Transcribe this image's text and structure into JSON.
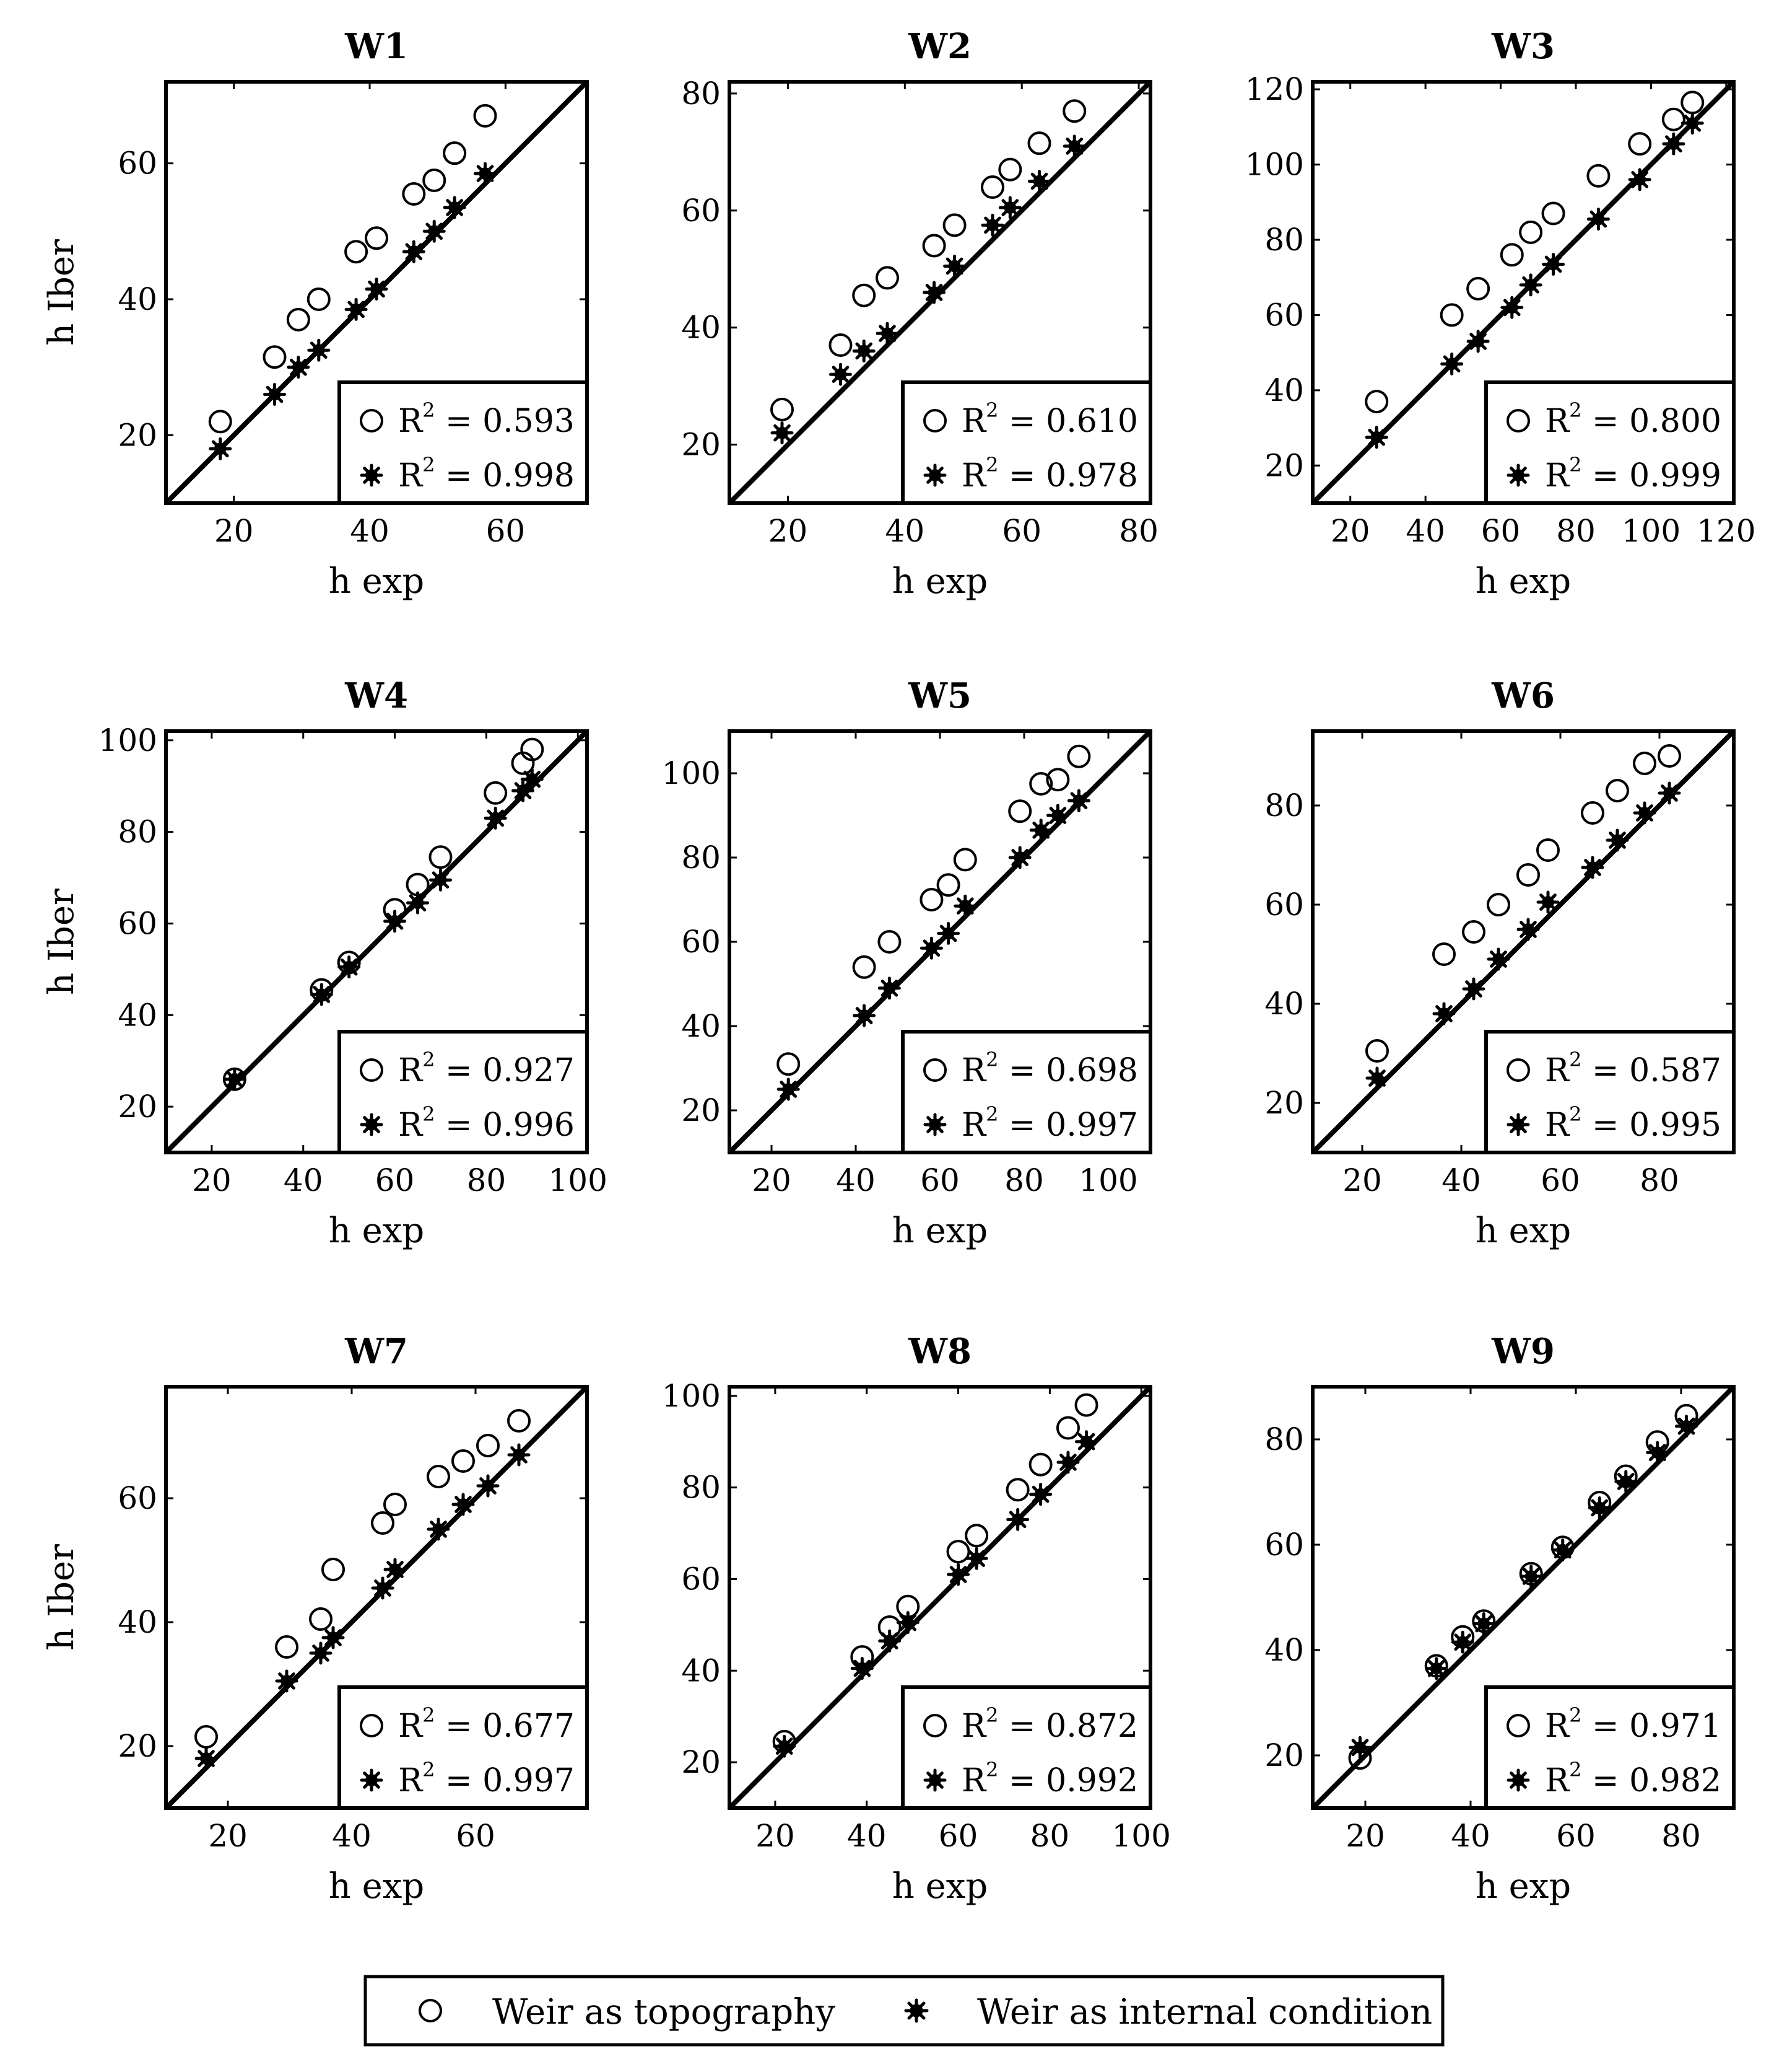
{
  "chart_data": [
    {
      "type": "scatter",
      "title": "W1",
      "xlabel": "h exp",
      "ylabel": "h Iber",
      "xlim": [
        10,
        72
      ],
      "ylim": [
        10,
        72
      ],
      "xticks": [
        20,
        40,
        60
      ],
      "yticks": [
        20,
        40,
        60
      ],
      "series": [
        {
          "name": "Weir as topography",
          "marker": "open-circle",
          "r2": "R² = 0.593",
          "points": [
            [
              18,
              22
            ],
            [
              26,
              31.5
            ],
            [
              29.5,
              37
            ],
            [
              32.5,
              40
            ],
            [
              38,
              47
            ],
            [
              41,
              49
            ],
            [
              46.5,
              55.5
            ],
            [
              49.5,
              57.5
            ],
            [
              52.5,
              61.5
            ],
            [
              57,
              67
            ]
          ]
        },
        {
          "name": "Weir as internal condition",
          "marker": "filled-star",
          "r2": "R² = 0.998",
          "points": [
            [
              18,
              18
            ],
            [
              26,
              26
            ],
            [
              29.5,
              30
            ],
            [
              32.5,
              32.5
            ],
            [
              38,
              38.5
            ],
            [
              41,
              41.5
            ],
            [
              46.5,
              47
            ],
            [
              49.5,
              50
            ],
            [
              52.5,
              53.5
            ],
            [
              57,
              58.5
            ]
          ]
        }
      ]
    },
    {
      "type": "scatter",
      "title": "W2",
      "xlabel": "h exp",
      "ylabel": "",
      "xlim": [
        10,
        82
      ],
      "ylim": [
        10,
        82
      ],
      "xticks": [
        20,
        40,
        60,
        80
      ],
      "yticks": [
        20,
        40,
        60,
        80
      ],
      "series": [
        {
          "name": "Weir as topography",
          "marker": "open-circle",
          "r2": "R² = 0.610",
          "points": [
            [
              19,
              26
            ],
            [
              29,
              37
            ],
            [
              33,
              45.5
            ],
            [
              37,
              48.5
            ],
            [
              45,
              54
            ],
            [
              48.5,
              57.5
            ],
            [
              55,
              64
            ],
            [
              58,
              67
            ],
            [
              63,
              71.5
            ],
            [
              69,
              77
            ]
          ]
        },
        {
          "name": "Weir as internal condition",
          "marker": "filled-star",
          "r2": "R² = 0.978",
          "points": [
            [
              19,
              22
            ],
            [
              29,
              32
            ],
            [
              33,
              36
            ],
            [
              37,
              39
            ],
            [
              45,
              46
            ],
            [
              48.5,
              50.5
            ],
            [
              55,
              57.5
            ],
            [
              58,
              60.5
            ],
            [
              63,
              65
            ],
            [
              69,
              71
            ]
          ]
        }
      ]
    },
    {
      "type": "scatter",
      "title": "W3",
      "xlabel": "h exp",
      "ylabel": "",
      "xlim": [
        10,
        122
      ],
      "ylim": [
        10,
        122
      ],
      "xticks": [
        20,
        40,
        60,
        80,
        100,
        120
      ],
      "yticks": [
        20,
        40,
        60,
        80,
        100,
        120
      ],
      "series": [
        {
          "name": "Weir as topography",
          "marker": "open-circle",
          "r2": "R² = 0.800",
          "points": [
            [
              27,
              37
            ],
            [
              47,
              60
            ],
            [
              54,
              67
            ],
            [
              63,
              76
            ],
            [
              68,
              82
            ],
            [
              74,
              87
            ],
            [
              86,
              97
            ],
            [
              97,
              105.5
            ],
            [
              106,
              112
            ],
            [
              111,
              116.5
            ]
          ]
        },
        {
          "name": "Weir as internal condition",
          "marker": "filled-star",
          "r2": "R² = 0.999",
          "points": [
            [
              27,
              27.5
            ],
            [
              47,
              47
            ],
            [
              54,
              53
            ],
            [
              63,
              62
            ],
            [
              68,
              68
            ],
            [
              74,
              73.5
            ],
            [
              86,
              85.5
            ],
            [
              97,
              96
            ],
            [
              106,
              105.5
            ],
            [
              111,
              111
            ]
          ]
        }
      ]
    },
    {
      "type": "scatter",
      "title": "W4",
      "xlabel": "h exp",
      "ylabel": "h Iber",
      "xlim": [
        10,
        102
      ],
      "ylim": [
        10,
        102
      ],
      "xticks": [
        20,
        40,
        60,
        80,
        100
      ],
      "yticks": [
        20,
        40,
        60,
        80,
        100
      ],
      "series": [
        {
          "name": "Weir as topography",
          "marker": "open-circle",
          "r2": "R² = 0.927",
          "points": [
            [
              25,
              26
            ],
            [
              44,
              45.5
            ],
            [
              50,
              51.5
            ],
            [
              60,
              63
            ],
            [
              65,
              68.5
            ],
            [
              70,
              74.5
            ],
            [
              82,
              88.5
            ],
            [
              88,
              95
            ],
            [
              90,
              98
            ]
          ]
        },
        {
          "name": "Weir as internal condition",
          "marker": "filled-star",
          "r2": "R² = 0.996",
          "points": [
            [
              25,
              26
            ],
            [
              44,
              44.5
            ],
            [
              50,
              50.5
            ],
            [
              60,
              60.5
            ],
            [
              65,
              64.5
            ],
            [
              70,
              69.5
            ],
            [
              82,
              83
            ],
            [
              88,
              89
            ],
            [
              90,
              91.5
            ]
          ]
        }
      ]
    },
    {
      "type": "scatter",
      "title": "W5",
      "xlabel": "h exp",
      "ylabel": "",
      "xlim": [
        10,
        110
      ],
      "ylim": [
        10,
        110
      ],
      "xticks": [
        20,
        40,
        60,
        80,
        100
      ],
      "yticks": [
        20,
        40,
        60,
        80,
        100
      ],
      "series": [
        {
          "name": "Weir as topography",
          "marker": "open-circle",
          "r2": "R² = 0.698",
          "points": [
            [
              24,
              31
            ],
            [
              42,
              54
            ],
            [
              48,
              60
            ],
            [
              58,
              70
            ],
            [
              62,
              73.5
            ],
            [
              66,
              79.5
            ],
            [
              79,
              91
            ],
            [
              84,
              97.5
            ],
            [
              88,
              98.5
            ],
            [
              93,
              104
            ]
          ]
        },
        {
          "name": "Weir as internal condition",
          "marker": "filled-star",
          "r2": "R² = 0.997",
          "points": [
            [
              24,
              25
            ],
            [
              42,
              42.5
            ],
            [
              48,
              49
            ],
            [
              58,
              58.5
            ],
            [
              62,
              62
            ],
            [
              66,
              68.5
            ],
            [
              79,
              80
            ],
            [
              84,
              86.5
            ],
            [
              88,
              90
            ],
            [
              93,
              93.5
            ]
          ]
        }
      ]
    },
    {
      "type": "scatter",
      "title": "W6",
      "xlabel": "h exp",
      "ylabel": "",
      "xlim": [
        10,
        95
      ],
      "ylim": [
        10,
        95
      ],
      "xticks": [
        20,
        40,
        60,
        80
      ],
      "yticks": [
        20,
        40,
        60,
        80
      ],
      "series": [
        {
          "name": "Weir as topography",
          "marker": "open-circle",
          "r2": "R² = 0.587",
          "points": [
            [
              23,
              30.5
            ],
            [
              36.5,
              50
            ],
            [
              42.5,
              54.5
            ],
            [
              47.5,
              60
            ],
            [
              53.5,
              66
            ],
            [
              57.5,
              71
            ],
            [
              66.5,
              78.5
            ],
            [
              71.5,
              83
            ],
            [
              77,
              88.5
            ],
            [
              82,
              90
            ]
          ]
        },
        {
          "name": "Weir as internal condition",
          "marker": "filled-star",
          "r2": "R² = 0.995",
          "points": [
            [
              23,
              25
            ],
            [
              36.5,
              38
            ],
            [
              42.5,
              43
            ],
            [
              47.5,
              49
            ],
            [
              53.5,
              55
            ],
            [
              57.5,
              60.5
            ],
            [
              66.5,
              67.5
            ],
            [
              71.5,
              73
            ],
            [
              77,
              78.5
            ],
            [
              82,
              82.5
            ]
          ]
        }
      ]
    },
    {
      "type": "scatter",
      "title": "W7",
      "xlabel": "h exp",
      "ylabel": "h Iber",
      "xlim": [
        10,
        78
      ],
      "ylim": [
        10,
        78
      ],
      "xticks": [
        20,
        40,
        60
      ],
      "yticks": [
        20,
        40,
        60
      ],
      "series": [
        {
          "name": "Weir as topography",
          "marker": "open-circle",
          "r2": "R² = 0.677",
          "points": [
            [
              16.5,
              21.5
            ],
            [
              29.5,
              36
            ],
            [
              35,
              40.5
            ],
            [
              37,
              48.5
            ],
            [
              45,
              56
            ],
            [
              47,
              59
            ],
            [
              54,
              63.5
            ],
            [
              58,
              66
            ],
            [
              62,
              68.5
            ],
            [
              67,
              72.5
            ]
          ]
        },
        {
          "name": "Weir as internal condition",
          "marker": "filled-star",
          "r2": "R² = 0.997",
          "points": [
            [
              16.5,
              18
            ],
            [
              29.5,
              30.5
            ],
            [
              35,
              35
            ],
            [
              37,
              37.5
            ],
            [
              45,
              45.5
            ],
            [
              47,
              48.5
            ],
            [
              54,
              55
            ],
            [
              58,
              59
            ],
            [
              62,
              62
            ],
            [
              67,
              67
            ]
          ]
        }
      ]
    },
    {
      "type": "scatter",
      "title": "W8",
      "xlabel": "h exp",
      "ylabel": "",
      "xlim": [
        10,
        102
      ],
      "ylim": [
        10,
        102
      ],
      "xticks": [
        20,
        40,
        60,
        80,
        100
      ],
      "yticks": [
        20,
        40,
        60,
        80,
        100
      ],
      "series": [
        {
          "name": "Weir as topography",
          "marker": "open-circle",
          "r2": "R² = 0.872",
          "points": [
            [
              22,
              24.5
            ],
            [
              39,
              43
            ],
            [
              45,
              49.5
            ],
            [
              49,
              54
            ],
            [
              60,
              66
            ],
            [
              64,
              69.5
            ],
            [
              73,
              79.5
            ],
            [
              78,
              85
            ],
            [
              84,
              93
            ],
            [
              88,
              98
            ]
          ]
        },
        {
          "name": "Weir as internal condition",
          "marker": "filled-star",
          "r2": "R² = 0.992",
          "points": [
            [
              22,
              23.5
            ],
            [
              39,
              40.5
            ],
            [
              45,
              46.5
            ],
            [
              49,
              50.5
            ],
            [
              60,
              61
            ],
            [
              64,
              64.5
            ],
            [
              73,
              73
            ],
            [
              78,
              78.5
            ],
            [
              84,
              85.5
            ],
            [
              88,
              90
            ]
          ]
        }
      ]
    },
    {
      "type": "scatter",
      "title": "W9",
      "xlabel": "h exp",
      "ylabel": "",
      "xlim": [
        10,
        90
      ],
      "ylim": [
        10,
        90
      ],
      "xticks": [
        20,
        40,
        60,
        80
      ],
      "yticks": [
        20,
        40,
        60,
        80
      ],
      "series": [
        {
          "name": "Weir as topography",
          "marker": "open-circle",
          "r2": "R² = 0.971",
          "points": [
            [
              19,
              19.5
            ],
            [
              33.5,
              37
            ],
            [
              38.5,
              42.5
            ],
            [
              42.5,
              45.5
            ],
            [
              51.5,
              54.5
            ],
            [
              57.5,
              59.5
            ],
            [
              64.5,
              68
            ],
            [
              69.5,
              73
            ],
            [
              75.5,
              79.5
            ],
            [
              81,
              84.5
            ]
          ]
        },
        {
          "name": "Weir as internal condition",
          "marker": "filled-star",
          "r2": "R² = 0.982",
          "points": [
            [
              19,
              21.5
            ],
            [
              33.5,
              36.5
            ],
            [
              38.5,
              41.5
            ],
            [
              42.5,
              45
            ],
            [
              51.5,
              54
            ],
            [
              57.5,
              59
            ],
            [
              64.5,
              67
            ],
            [
              69.5,
              72
            ],
            [
              75.5,
              77.5
            ],
            [
              81,
              82.5
            ]
          ]
        }
      ]
    }
  ],
  "legend": {
    "items": [
      {
        "label": "Weir as topography",
        "marker": "open-circle"
      },
      {
        "label": "Weir as internal condition",
        "marker": "filled-star"
      }
    ]
  }
}
